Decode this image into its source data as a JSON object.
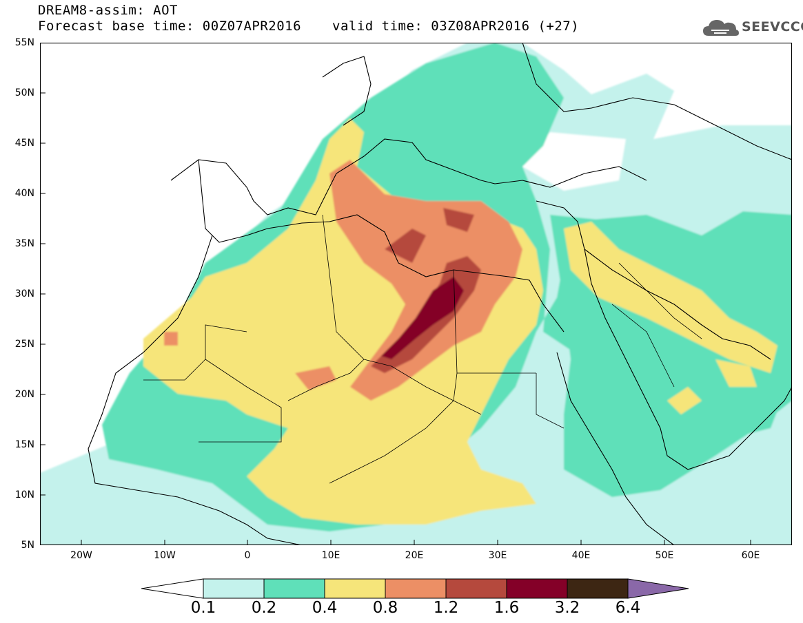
{
  "title": {
    "line1": "DREAM8-assim: AOT",
    "line2": "Forecast base time: 00Z07APR2016",
    "valid": "valid time: 03Z08APR2016 (+27)"
  },
  "logo": {
    "text": "SEEVCCC",
    "icon": "cloud-icon"
  },
  "axes": {
    "y_labels": [
      "55N",
      "50N",
      "45N",
      "40N",
      "35N",
      "30N",
      "25N",
      "20N",
      "15N",
      "10N",
      "5N"
    ],
    "x_labels": [
      "20W",
      "10W",
      "0",
      "10E",
      "20E",
      "30E",
      "40E",
      "50E",
      "60E"
    ],
    "lat_range": [
      5,
      55
    ],
    "lon_range": [
      -25,
      65
    ]
  },
  "colorbar": {
    "labels": [
      "0.1",
      "0.2",
      "0.4",
      "0.8",
      "1.2",
      "1.6",
      "3.2",
      "6.4"
    ],
    "colors": [
      "#ffffff",
      "#c4f2ec",
      "#5fe0b9",
      "#f6e57a",
      "#ec8f65",
      "#b5493d",
      "#840028",
      "#3d2613",
      "#8a68a8"
    ]
  },
  "colors": {
    "ocean": "#ffffff",
    "level_0_1": "#c4f2ec",
    "level_0_2": "#5fe0b9",
    "level_0_4": "#f6e57a",
    "level_0_8": "#ec8f65",
    "level_1_2": "#b5493d",
    "level_1_6": "#840028"
  }
}
